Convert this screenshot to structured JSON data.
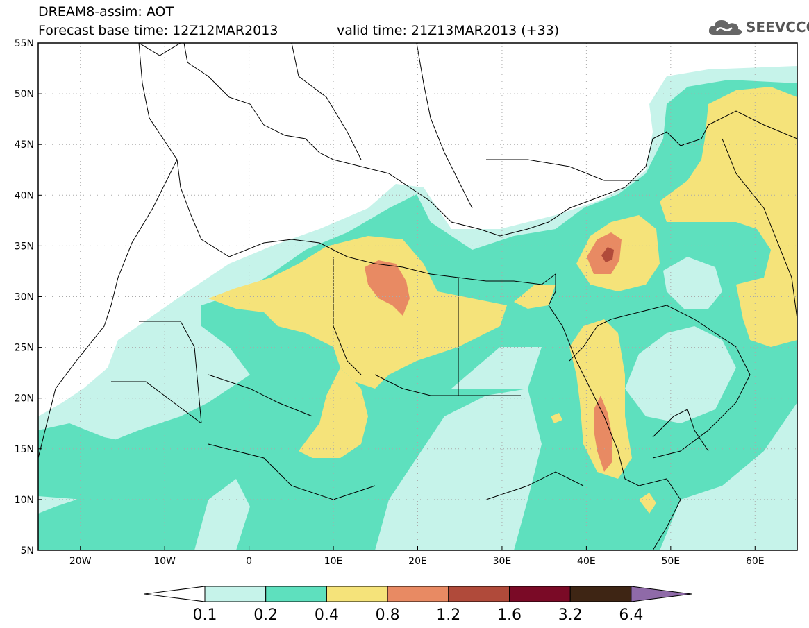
{
  "header": {
    "line1": "DREAM8-assim: AOT",
    "line2": "Forecast base time: 12Z12MAR2013",
    "line3": "valid time: 21Z13MAR2013 (+33)"
  },
  "logo": {
    "text": "SEEVCCC",
    "icon": "cloud-icon"
  },
  "map": {
    "lon_range": [
      -25,
      65
    ],
    "lat_range": [
      5,
      55
    ],
    "lon_ticks": [
      "20W",
      "10W",
      "0",
      "10E",
      "20E",
      "30E",
      "40E",
      "50E",
      "60E"
    ],
    "lat_ticks": [
      "55N",
      "50N",
      "45N",
      "40N",
      "35N",
      "30N",
      "25N",
      "20N",
      "15N",
      "10N",
      "5N"
    ],
    "grid": "dotted"
  },
  "colorbar": {
    "levels": [
      "0.1",
      "0.2",
      "0.4",
      "0.8",
      "1.2",
      "1.6",
      "3.2",
      "6.4"
    ],
    "colors": [
      "#ffffff",
      "#c6f3ea",
      "#5ee0be",
      "#f5e37a",
      "#e88a63",
      "#b04a3a",
      "#7a0a26",
      "#3e2514",
      "#8f6aa8"
    ]
  }
}
